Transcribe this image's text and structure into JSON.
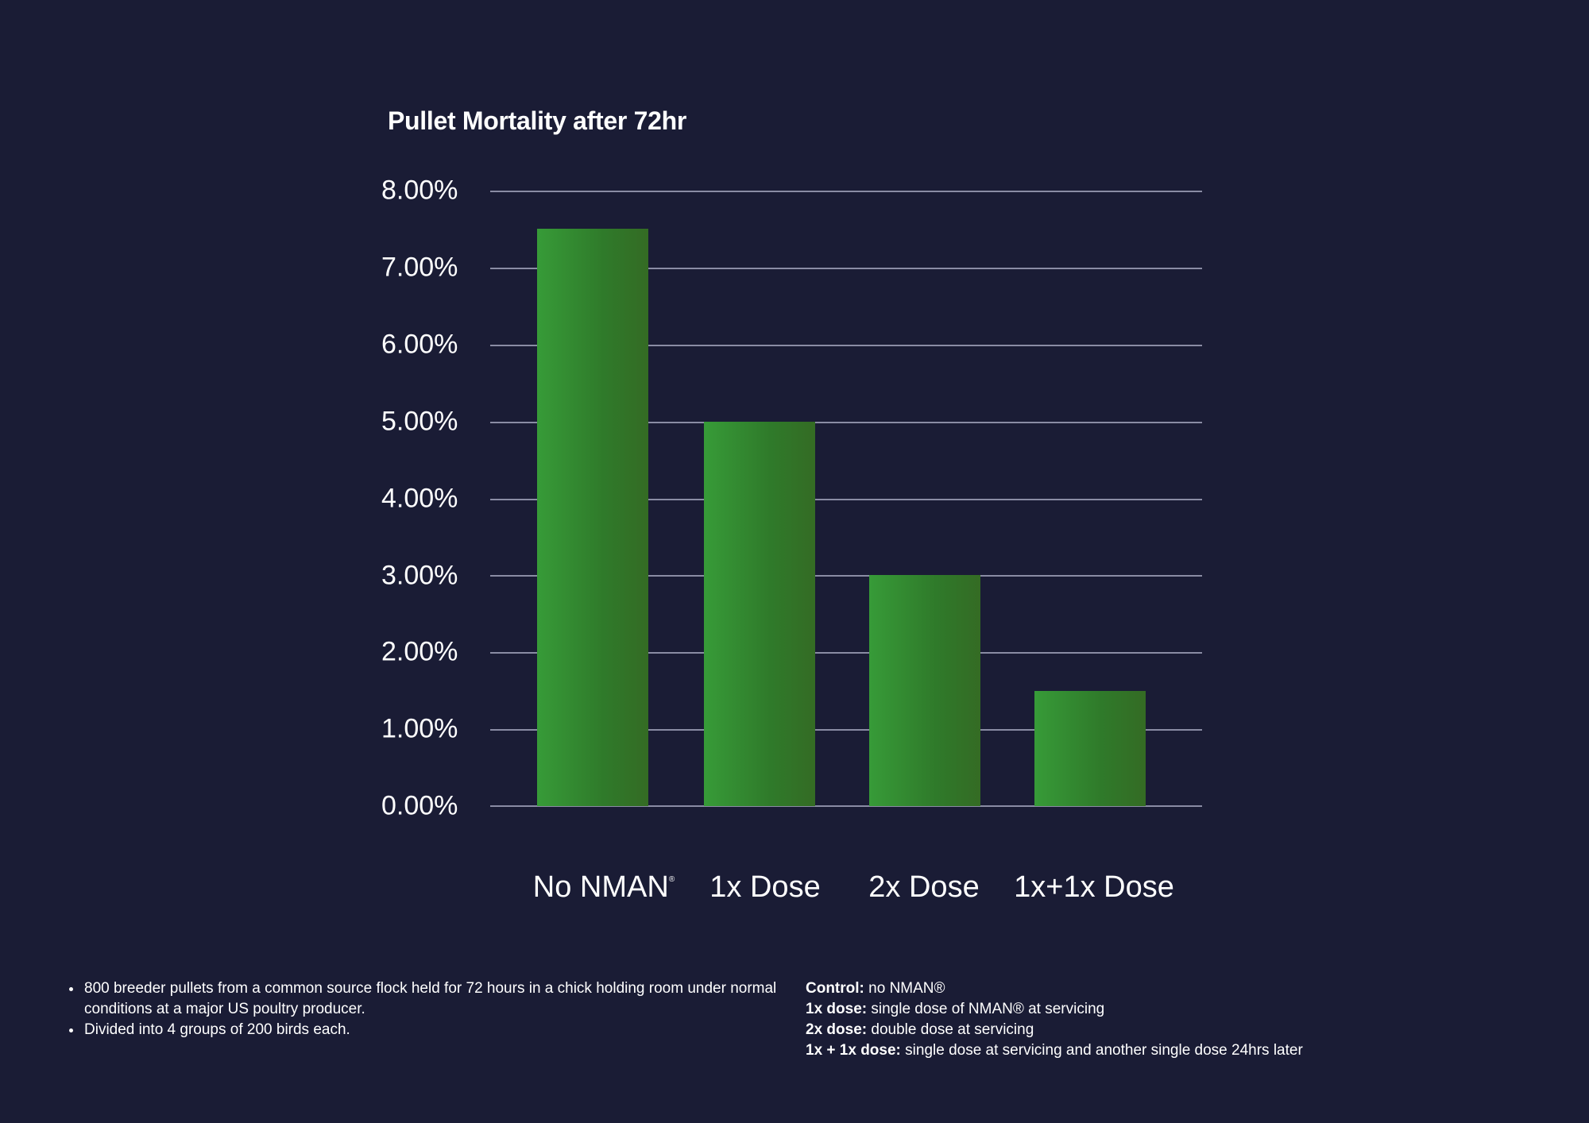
{
  "chart_data": {
    "type": "bar",
    "title": "Pullet Mortality after 72hr",
    "categories": [
      "No NMAN®",
      "1x Dose",
      "2x Dose",
      "1x+1x Dose"
    ],
    "values": [
      7.5,
      5.0,
      3.0,
      1.5
    ],
    "value_format": "percent",
    "xlabel": "",
    "ylabel": "",
    "ylim": [
      0,
      8
    ],
    "yticks": [
      "0.00%",
      "1.00%",
      "2.00%",
      "3.00%",
      "4.00%",
      "5.00%",
      "6.00%",
      "7.00%",
      "8.00%"
    ],
    "grid": true,
    "legend": "none",
    "bar_color": "#379b38"
  },
  "chart": {
    "title": "Pullet Mortality after 72hr",
    "yticks": [
      "8.00%",
      "7.00%",
      "6.00%",
      "5.00%",
      "4.00%",
      "3.00%",
      "2.00%",
      "1.00%",
      "0.00%"
    ],
    "categories": [
      {
        "label": "No NMAN",
        "sup": "®"
      },
      {
        "label": "1x Dose",
        "sup": ""
      },
      {
        "label": "2x Dose",
        "sup": ""
      },
      {
        "label": "1x+1x Dose",
        "sup": ""
      }
    ]
  },
  "notes": {
    "bullets": [
      "800 breeder pullets from a common source flock held for 72 hours in a chick holding room under normal conditions at a major US poultry producer.",
      "Divided into 4 groups of 200 birds each."
    ],
    "definitions": [
      {
        "term": "Control:",
        "text": " no NMAN®"
      },
      {
        "term": "1x dose:",
        "text": " single dose of NMAN® at servicing"
      },
      {
        "term": "2x dose:",
        "text": " double dose at servicing"
      },
      {
        "term": "1x + 1x dose:",
        "text": " single dose at servicing and another single dose 24hrs later"
      }
    ]
  },
  "colors": {
    "background": "#1a1c35",
    "gridline": "#8a8ca4",
    "bar_light": "#379b38",
    "bar_dark": "#346b24",
    "text": "#ffffff"
  }
}
